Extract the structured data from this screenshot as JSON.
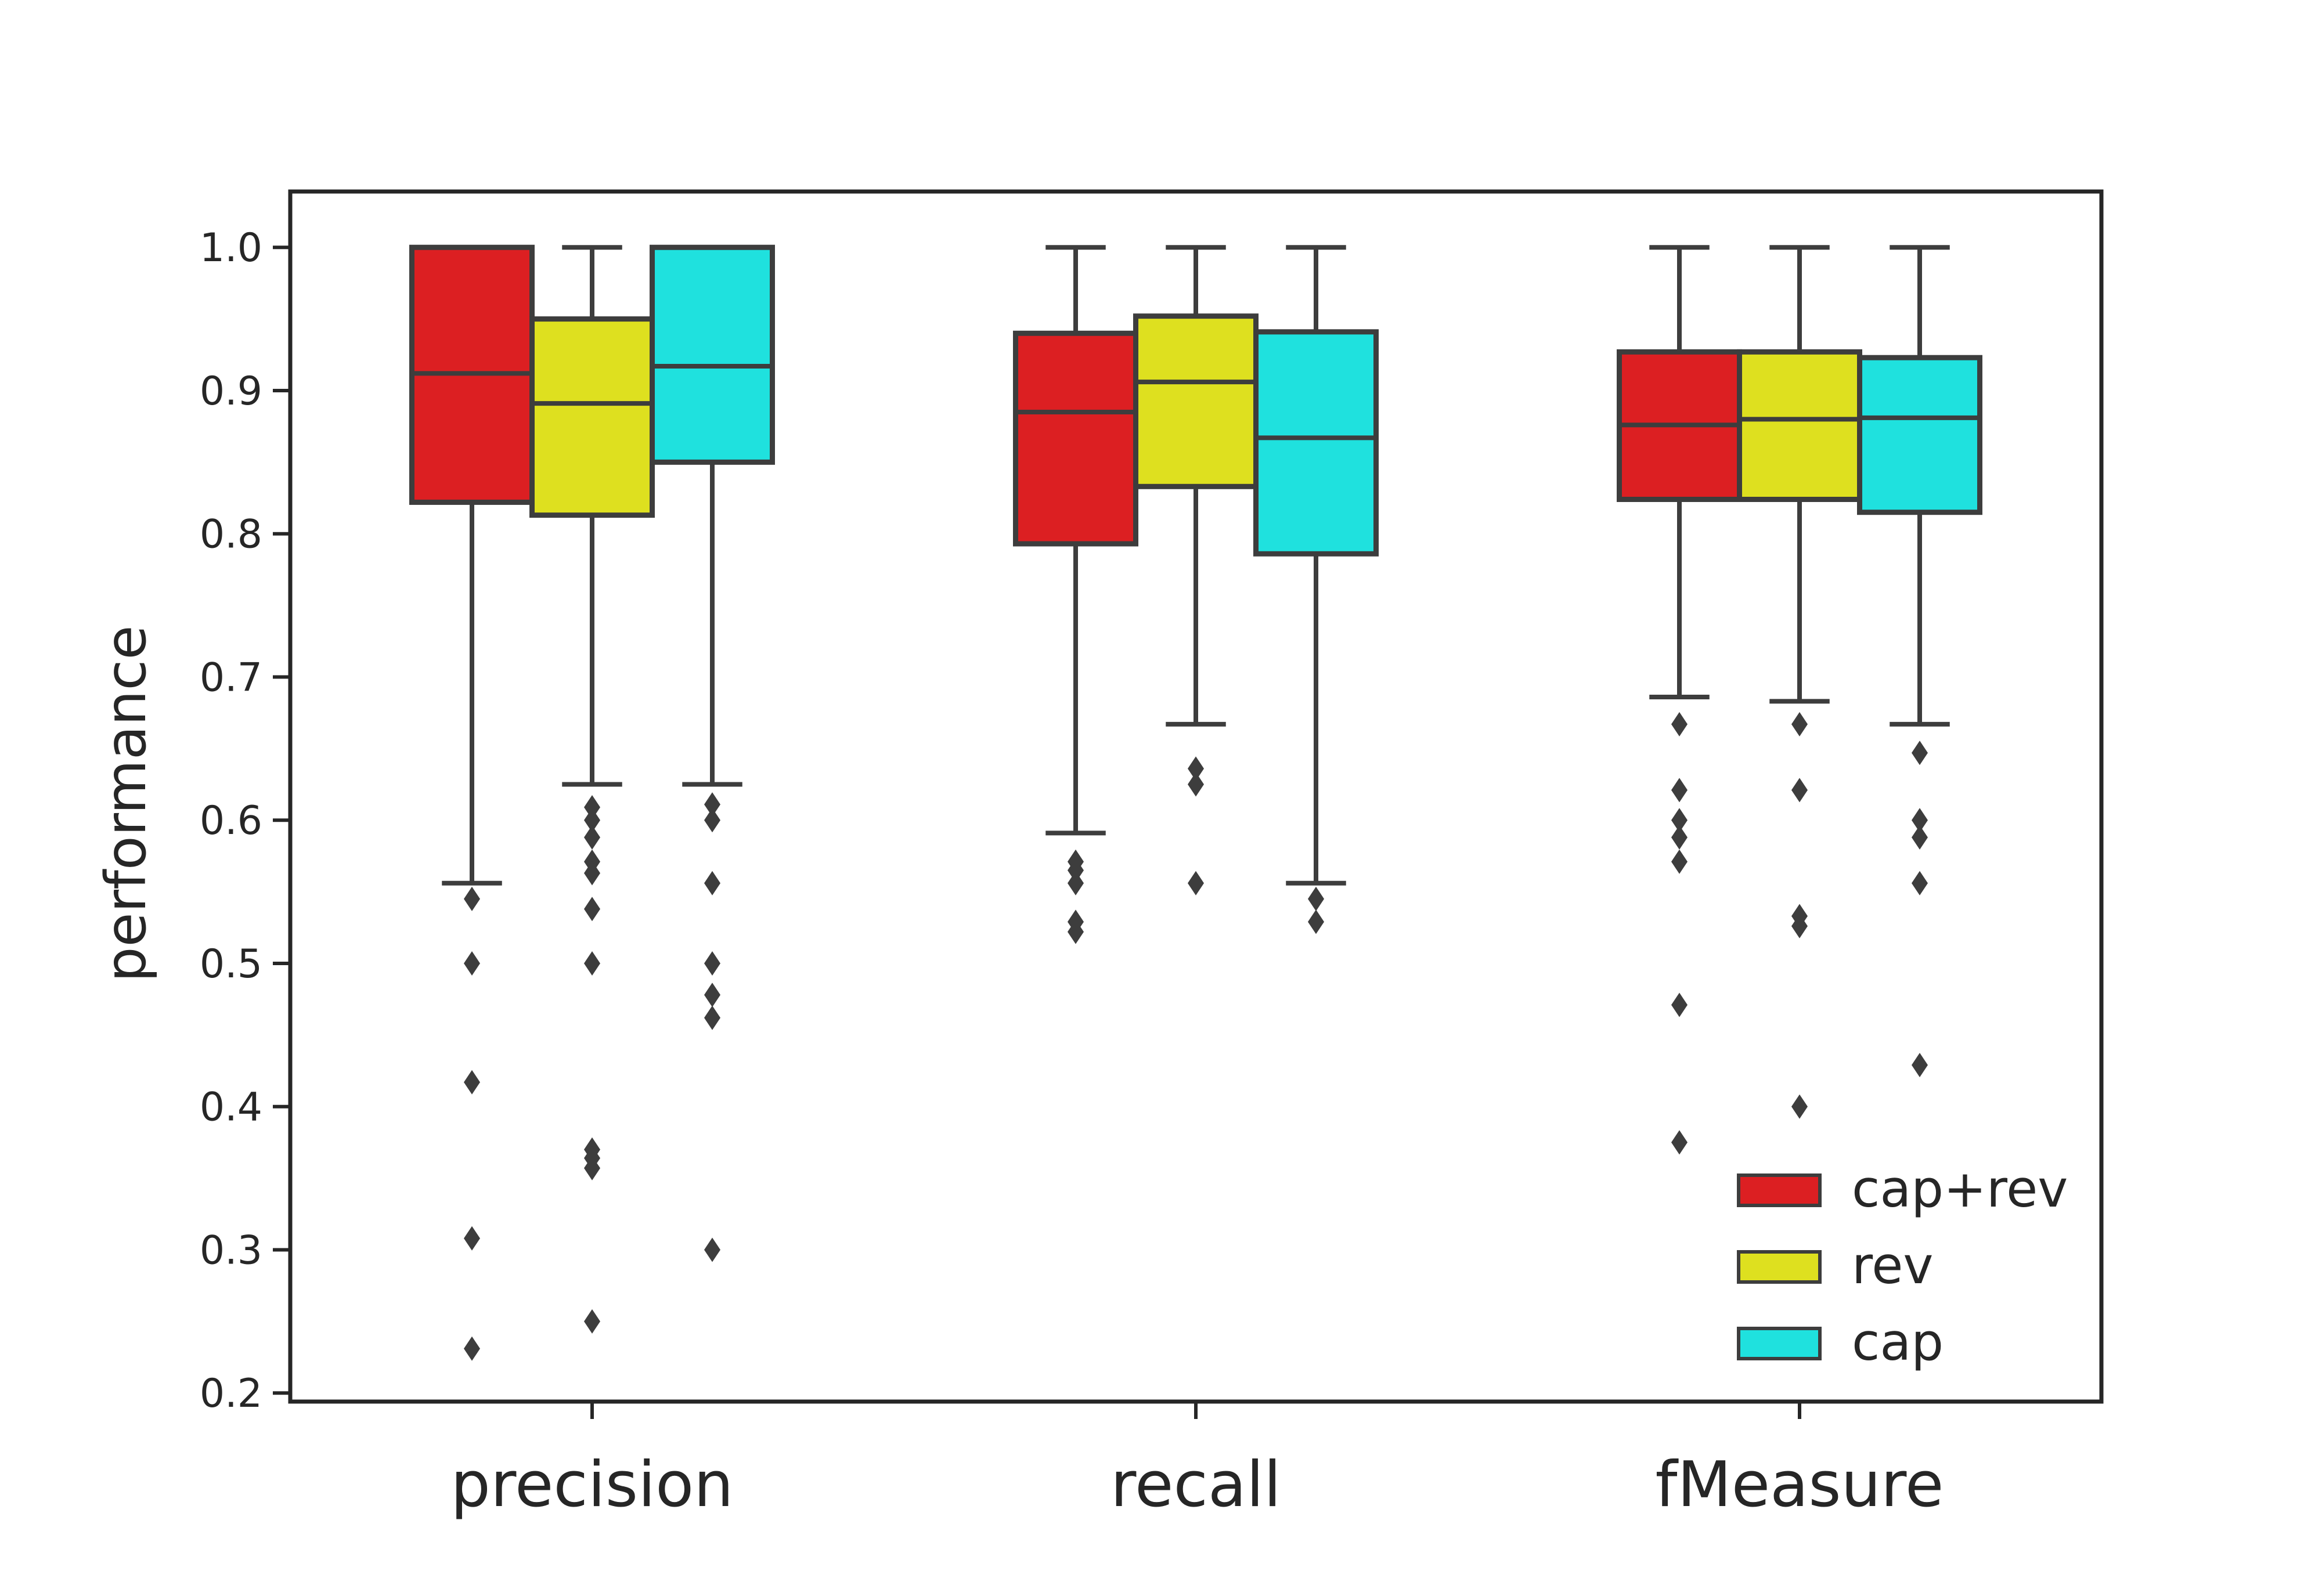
{
  "chart_data": {
    "type": "box",
    "title": "",
    "xlabel": "",
    "ylabel": "performance",
    "ylim": [
      0.194,
      1.039
    ],
    "yticks": [
      0.2,
      0.3,
      0.4,
      0.5,
      0.6,
      0.7,
      0.8,
      0.9,
      1.0
    ],
    "ytick_labels": [
      "0.2",
      "0.3",
      "0.4",
      "0.5",
      "0.6",
      "0.7",
      "0.8",
      "0.9",
      "1.0"
    ],
    "categories": [
      "precision",
      "recall",
      "fMeasure"
    ],
    "grid": false,
    "legend_position": "lower-right",
    "series": [
      {
        "name": "cap+rev",
        "color": "#dc1f22",
        "boxes": [
          {
            "whisker_low": 0.556,
            "q1": 0.822,
            "median": 0.912,
            "q3": 1.0,
            "whisker_high": 1.0,
            "outliers": [
              0.545,
              0.5,
              0.417,
              0.308,
              0.231
            ]
          },
          {
            "whisker_low": 0.591,
            "q1": 0.793,
            "median": 0.885,
            "q3": 0.94,
            "whisker_high": 1.0,
            "outliers": [
              0.571,
              0.565,
              0.556,
              0.529,
              0.522
            ]
          },
          {
            "whisker_low": 0.686,
            "q1": 0.824,
            "median": 0.876,
            "q3": 0.927,
            "whisker_high": 1.0,
            "outliers": [
              0.667,
              0.621,
              0.6,
              0.588,
              0.571,
              0.471,
              0.375
            ]
          }
        ]
      },
      {
        "name": "rev",
        "color": "#dee01f",
        "boxes": [
          {
            "whisker_low": 0.625,
            "q1": 0.813,
            "median": 0.891,
            "q3": 0.95,
            "whisker_high": 1.0,
            "outliers": [
              0.609,
              0.6,
              0.588,
              0.571,
              0.563,
              0.538,
              0.5,
              0.37,
              0.364,
              0.357,
              0.25
            ]
          },
          {
            "whisker_low": 0.667,
            "q1": 0.833,
            "median": 0.906,
            "q3": 0.952,
            "whisker_high": 1.0,
            "outliers": [
              0.636,
              0.625,
              0.556
            ]
          },
          {
            "whisker_low": 0.683,
            "q1": 0.824,
            "median": 0.88,
            "q3": 0.927,
            "whisker_high": 1.0,
            "outliers": [
              0.667,
              0.621,
              0.533,
              0.526,
              0.4
            ]
          }
        ]
      },
      {
        "name": "cap",
        "color": "#1fe1de",
        "boxes": [
          {
            "whisker_low": 0.625,
            "q1": 0.85,
            "median": 0.917,
            "q3": 1.0,
            "whisker_high": 1.0,
            "outliers": [
              0.611,
              0.6,
              0.556,
              0.5,
              0.478,
              0.462,
              0.3
            ]
          },
          {
            "whisker_low": 0.556,
            "q1": 0.786,
            "median": 0.867,
            "q3": 0.941,
            "whisker_high": 1.0,
            "outliers": [
              0.545,
              0.529
            ]
          },
          {
            "whisker_low": 0.667,
            "q1": 0.815,
            "median": 0.881,
            "q3": 0.923,
            "whisker_high": 1.0,
            "outliers": [
              0.647,
              0.6,
              0.588,
              0.556,
              0.429
            ]
          }
        ]
      }
    ]
  }
}
